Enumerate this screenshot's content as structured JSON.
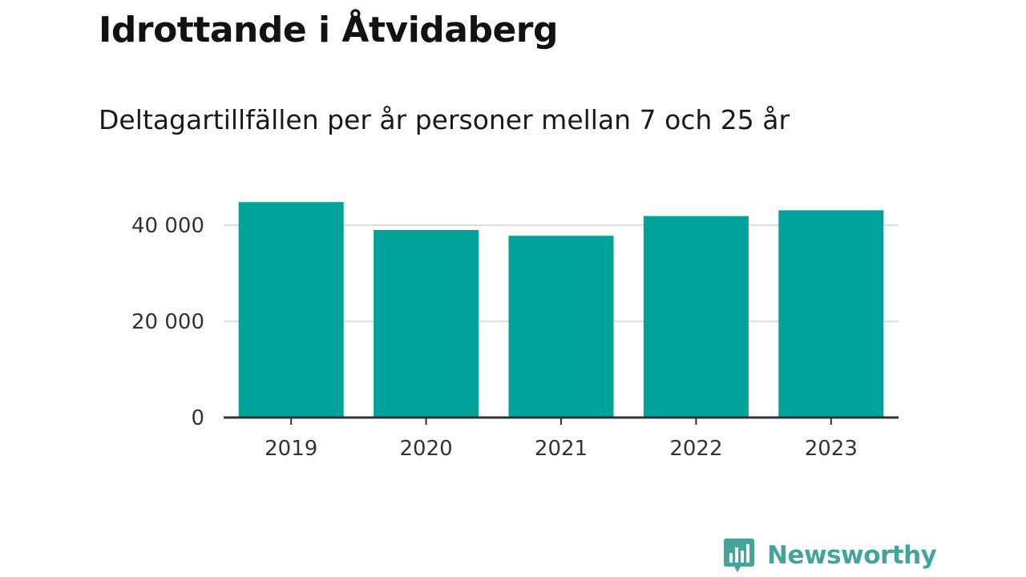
{
  "header": {
    "title": "Idrottande i Åtvidaberg",
    "subtitle": "Deltagartillfällen per år personer mellan 7 och 25 år"
  },
  "brand": {
    "name": "Newsworthy",
    "color": "#45a49a",
    "icon": "bar-chart-speech-bubble-icon"
  },
  "colors": {
    "bar": "#00a399",
    "grid": "#dddddd",
    "axis": "#333333"
  },
  "chart_data": {
    "type": "bar",
    "categories": [
      "2019",
      "2020",
      "2021",
      "2022",
      "2023"
    ],
    "values": [
      44800,
      39000,
      37800,
      41900,
      43100
    ],
    "title": "Idrottande i Åtvidaberg",
    "subtitle": "Deltagartillfällen per år personer mellan 7 och 25 år",
    "xlabel": "",
    "ylabel": "",
    "ylim": [
      0,
      50000
    ],
    "yticks": [
      0,
      20000,
      40000
    ],
    "ytick_labels": [
      "0",
      "20 000",
      "40 000"
    ],
    "grid": true,
    "legend": "none"
  }
}
